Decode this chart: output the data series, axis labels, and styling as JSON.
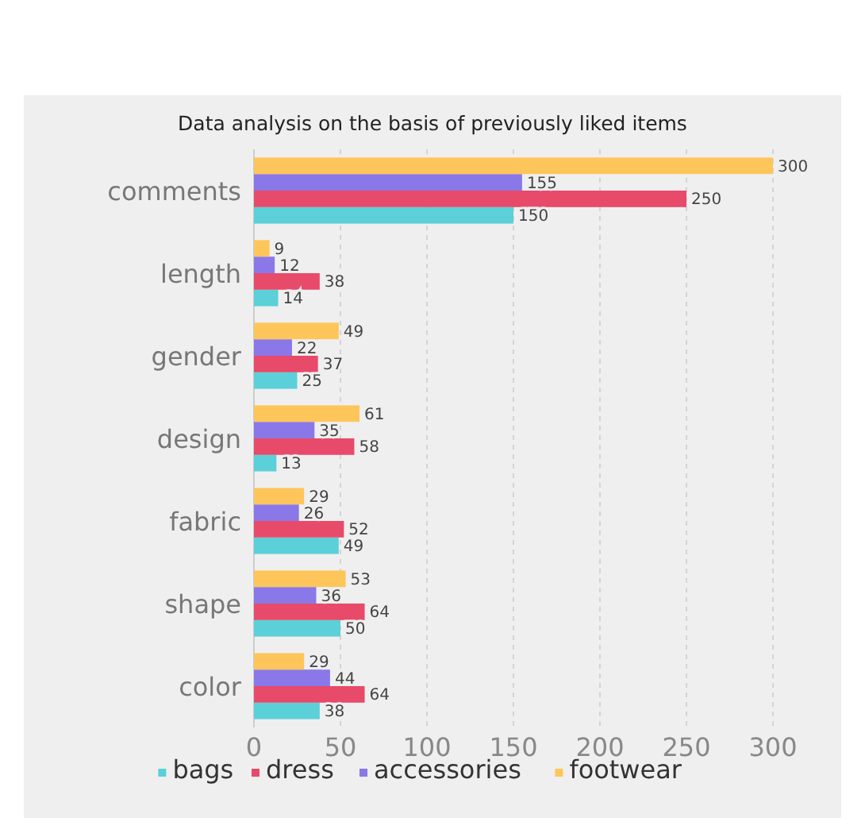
{
  "chart_data": {
    "type": "bar",
    "orientation": "horizontal",
    "title": "Data analysis on the basis of previously liked items",
    "categories": [
      "comments",
      "length",
      "gender",
      "design",
      "fabric",
      "shape",
      "color"
    ],
    "series": [
      {
        "name": "bags",
        "color": "#5bd0d8",
        "values": [
          150,
          14,
          25,
          13,
          49,
          50,
          38
        ]
      },
      {
        "name": "dress",
        "color": "#e84a6a",
        "values": [
          250,
          38,
          37,
          58,
          52,
          64,
          64
        ]
      },
      {
        "name": "accessories",
        "color": "#8b78e8",
        "values": [
          155,
          12,
          22,
          35,
          26,
          36,
          44
        ]
      },
      {
        "name": "footwear",
        "color": "#fec55a",
        "values": [
          300,
          9,
          49,
          61,
          29,
          53,
          29
        ]
      }
    ],
    "xlim": [
      0,
      300
    ],
    "xticks": [
      0,
      50,
      100,
      150,
      200,
      250,
      300
    ],
    "grid": "x",
    "legend": "bottom",
    "data_labels": true
  }
}
